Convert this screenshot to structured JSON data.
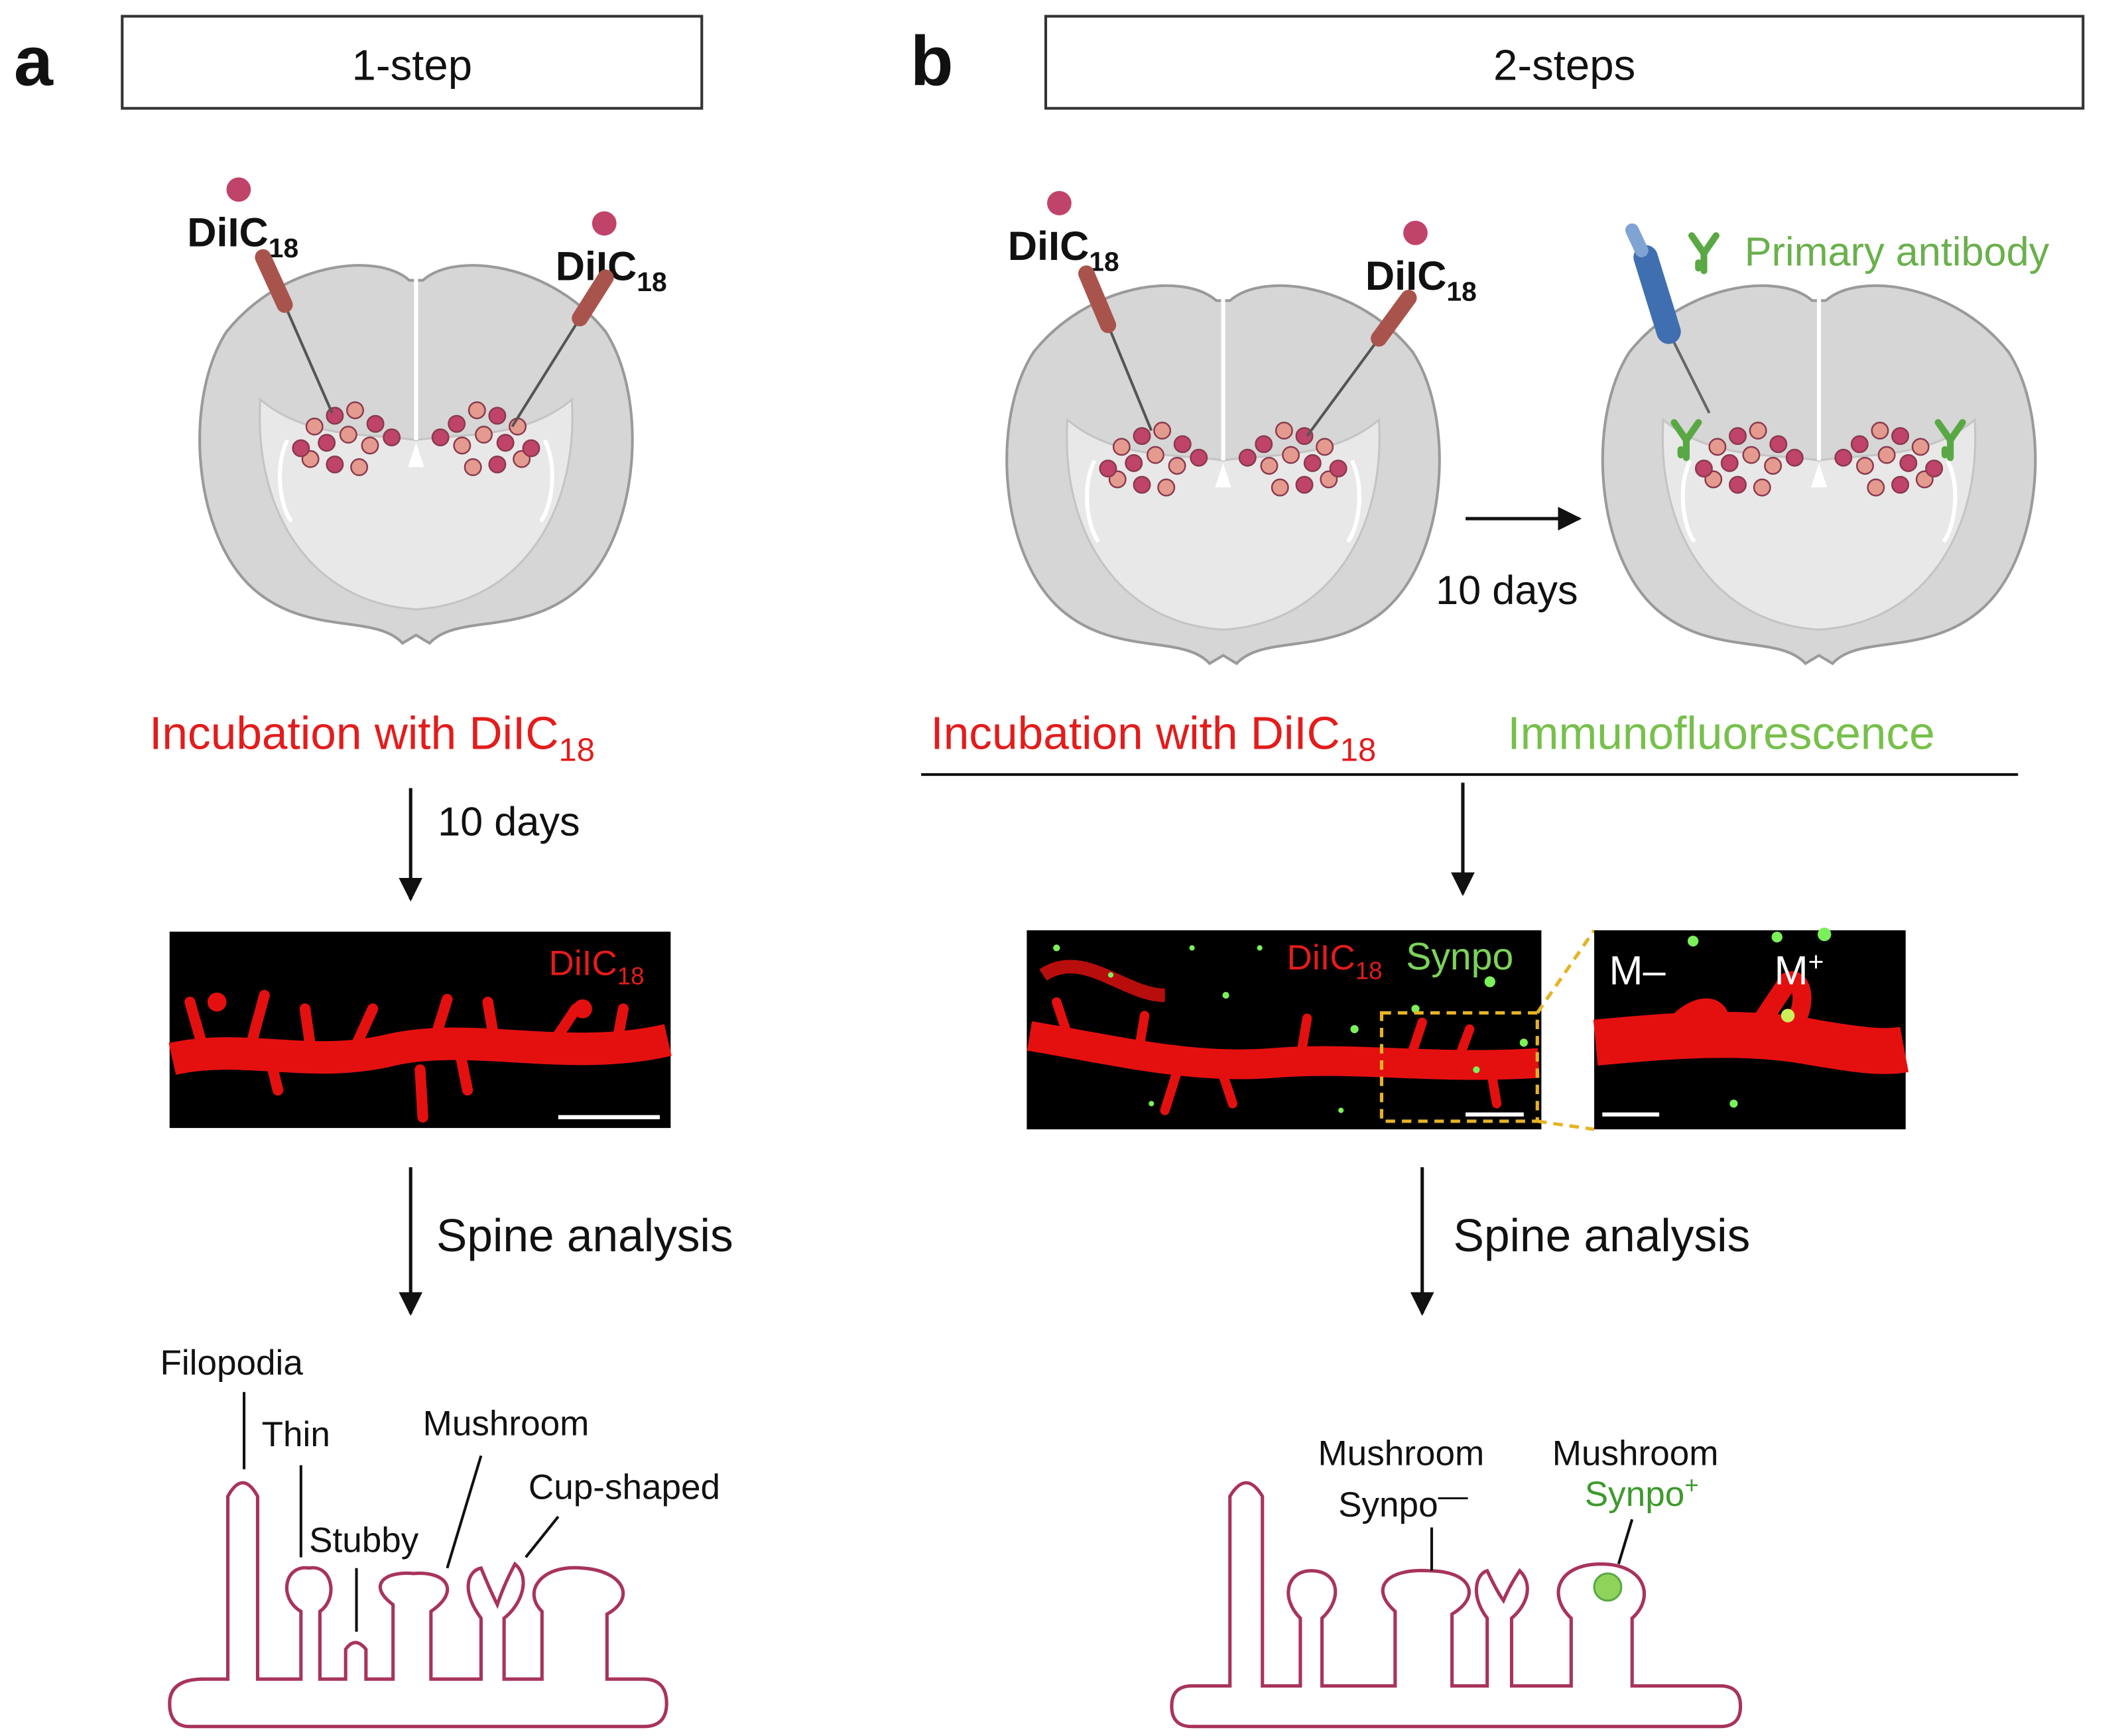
{
  "panel_a": {
    "letter": "a",
    "title": "1-step",
    "labels": [
      {
        "text": "DiIC",
        "sub": "18"
      },
      {
        "text": "DiIC",
        "sub": "18"
      }
    ],
    "incubation": {
      "text": "Incubation with DiIC",
      "sub": "18"
    },
    "duration": "10 days",
    "image_label": {
      "text": "DiIC",
      "sub": "18"
    },
    "analysis": "Spine analysis",
    "spine_types": [
      "Filopodia",
      "Thin",
      "Stubby",
      "Mushroom",
      "Cup-shaped"
    ]
  },
  "panel_b": {
    "letter": "b",
    "title": "2-steps",
    "labels": [
      {
        "text": "DiIC",
        "sub": "18"
      },
      {
        "text": "DiIC",
        "sub": "18"
      }
    ],
    "antibody": "Primary antibody",
    "duration": "10 days",
    "incubation": {
      "text": "Incubation with DiIC",
      "sub": "18"
    },
    "immunofluorescence": "Immunofluorescence",
    "image_labels": [
      {
        "text": "DiIC",
        "sub": "18"
      },
      {
        "text": "Synpo"
      }
    ],
    "inset_labels": [
      {
        "text": "M",
        "sup": "–"
      },
      {
        "text": "M",
        "sup": "+"
      }
    ],
    "analysis": "Spine analysis",
    "spine_types": [
      {
        "name": "Mushroom",
        "marker": "Synpo",
        "sign": "—"
      },
      {
        "name": "Mushroom",
        "marker": "Synpo",
        "sign": "+"
      }
    ]
  }
}
